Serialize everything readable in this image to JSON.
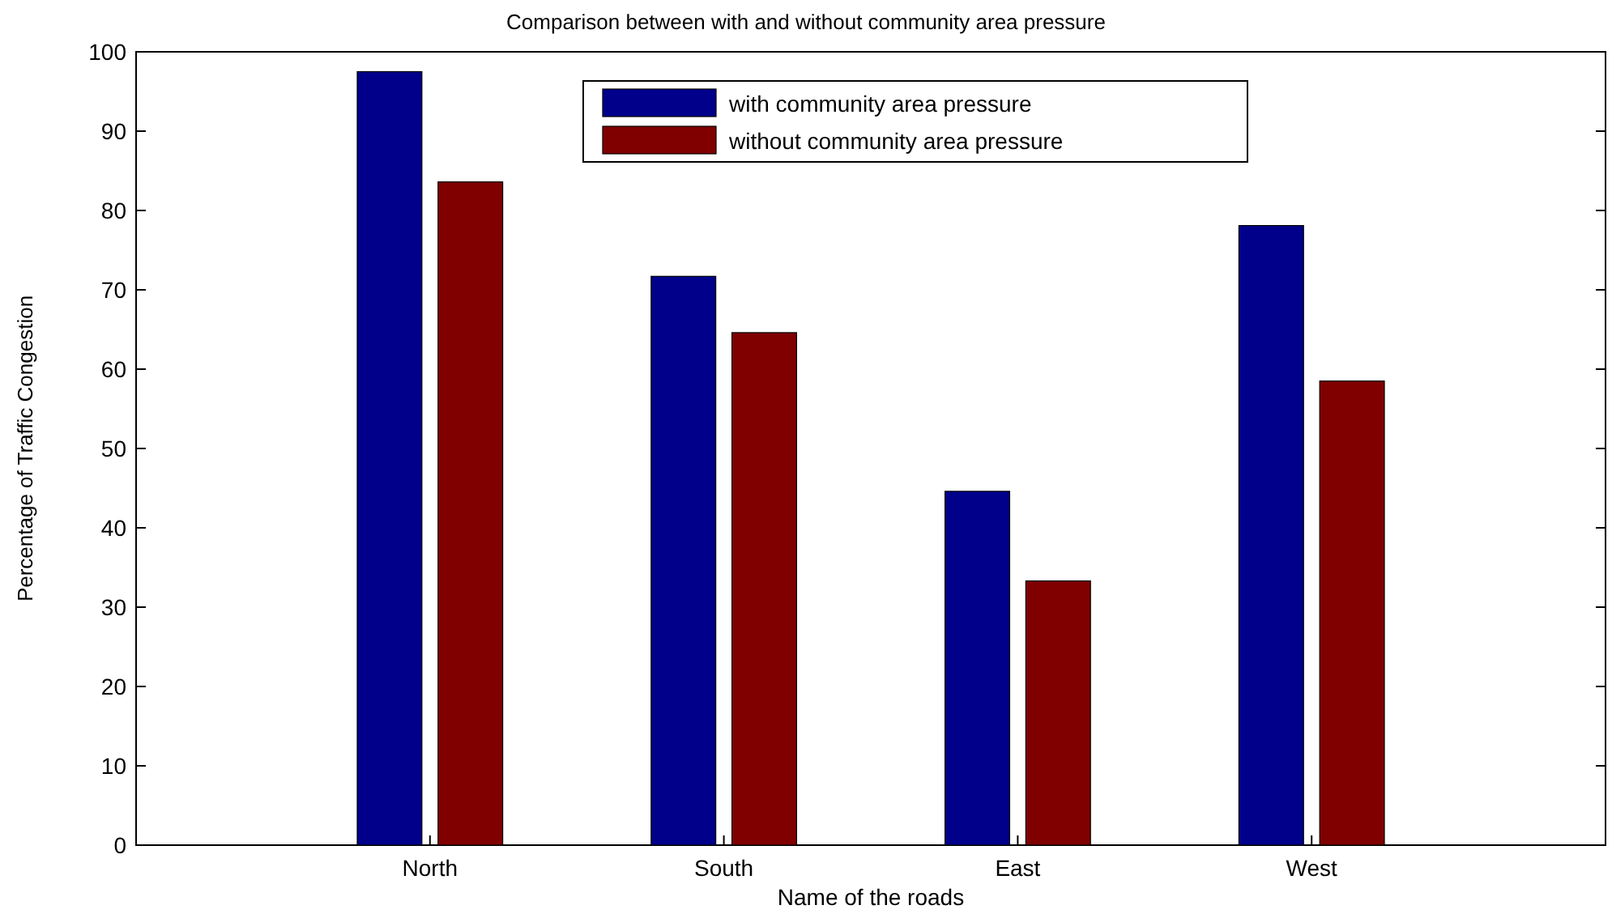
{
  "chart_data": {
    "type": "bar",
    "title": "Comparison between with and without community area pressure",
    "xlabel": "Name of the roads",
    "ylabel": "Percentage of Traffic Congestion",
    "categories": [
      "North",
      "South",
      "East",
      "West"
    ],
    "series": [
      {
        "name": "with community area pressure",
        "color": "#00008b",
        "values": [
          97.5,
          71.7,
          44.6,
          78.1
        ]
      },
      {
        "name": "without community area pressure",
        "color": "#800000",
        "values": [
          83.6,
          64.6,
          33.3,
          58.5
        ]
      }
    ],
    "ylim": [
      0,
      100
    ],
    "yticks": [
      0,
      10,
      20,
      30,
      40,
      50,
      60,
      70,
      80,
      90,
      100
    ],
    "grid": false,
    "legend": "top"
  }
}
